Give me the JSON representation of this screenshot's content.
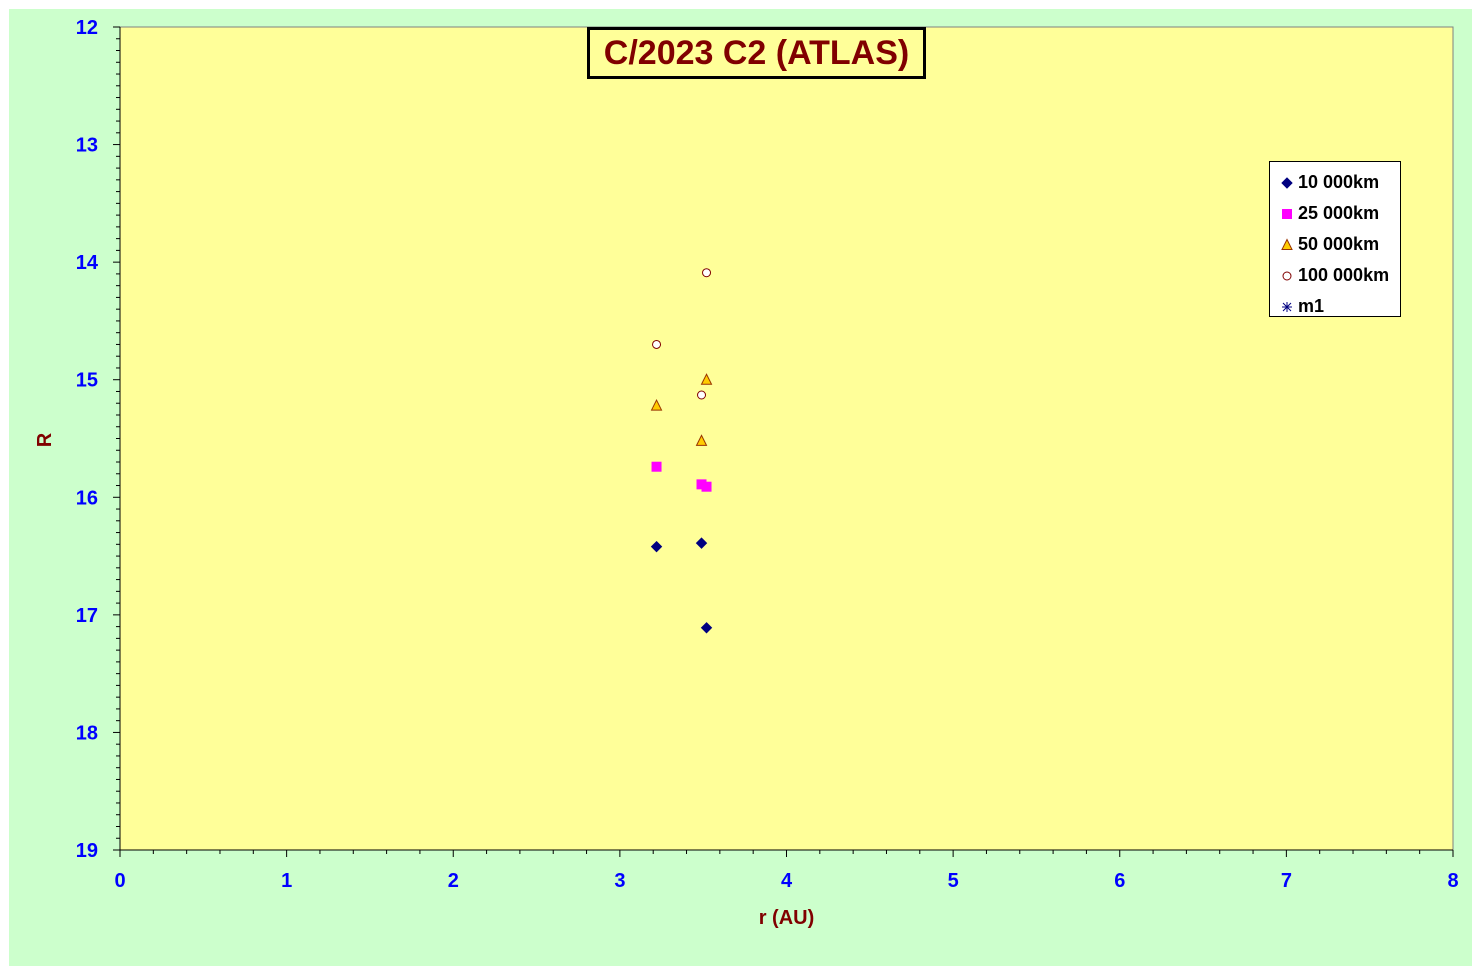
{
  "chart_data": {
    "type": "scatter",
    "title": "C/2023 C2 (ATLAS)",
    "xlabel": "r (AU)",
    "ylabel": "R",
    "xlim": [
      0,
      8
    ],
    "ylim": [
      12,
      19
    ],
    "y_inverted": true,
    "x_ticks": [
      "0",
      "1",
      "2",
      "3",
      "4",
      "5",
      "6",
      "7",
      "8"
    ],
    "y_ticks": [
      "12",
      "13",
      "14",
      "15",
      "16",
      "17",
      "18",
      "19"
    ],
    "grid": false,
    "legend_position": "top-right",
    "series": [
      {
        "name": "10 000km",
        "marker": "diamond",
        "color": "#000080",
        "points": [
          [
            3.22,
            16.42
          ],
          [
            3.49,
            16.39
          ],
          [
            3.52,
            17.11
          ]
        ]
      },
      {
        "name": "25 000km",
        "marker": "square",
        "color": "#ff00ff",
        "points": [
          [
            3.22,
            15.74
          ],
          [
            3.49,
            15.89
          ],
          [
            3.52,
            15.91
          ]
        ]
      },
      {
        "name": "50 000km",
        "marker": "triangle",
        "color": "#ffcc00",
        "stroke": "#993300",
        "points": [
          [
            3.22,
            15.22
          ],
          [
            3.49,
            15.52
          ],
          [
            3.52,
            15.0
          ]
        ]
      },
      {
        "name": "100 000km",
        "marker": "circle",
        "color": "#ffffff",
        "stroke": "#800000",
        "points": [
          [
            3.22,
            14.7
          ],
          [
            3.49,
            15.13
          ],
          [
            3.52,
            14.09
          ]
        ]
      },
      {
        "name": "m1",
        "marker": "star",
        "color": "#000080",
        "points": []
      }
    ]
  },
  "colors": {
    "chart_background": "#ccffcc",
    "plot_background": "#ffff99",
    "tick_label": "#0000ff",
    "axis_label": "#800000",
    "title": "#800000"
  }
}
